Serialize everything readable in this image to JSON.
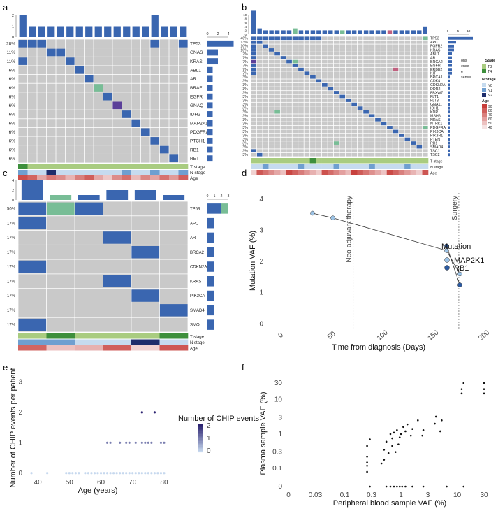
{
  "colors": {
    "mutation": "#3a66b0",
    "mut_green": "#78bd96",
    "mut_purple": "#5b3f99",
    "mut_pink": "#c0607f",
    "grid_bg": "#c9c9c9",
    "t3": "#a9cc80",
    "t4": "#3e8f3c",
    "n0": "#c6dbef",
    "n1": "#6f9fd0",
    "n2": "#1e2d6b",
    "age_hi": "#c73e3a",
    "age_lo": "#f5e2e2",
    "chip0": "#c6d8ee",
    "chip2": "#2b2270",
    "line_light": "#9cc3e6",
    "line_dark": "#2c5aa0"
  },
  "panels": {
    "a": "a",
    "b": "b",
    "c": "c",
    "d": "d",
    "e": "e",
    "f": "f"
  },
  "chart_data": [
    {
      "panel": "a",
      "type": "heatmap",
      "genes": [
        "TP53",
        "GNAS",
        "KRAS",
        "ABL1",
        "AR",
        "BRAF",
        "EGFR",
        "GNAQ",
        "IDH2",
        "MAP2K1",
        "PDGFRA",
        "PTCH1",
        "RB1",
        "RET"
      ],
      "percentages": [
        "28%",
        "11%",
        "11%",
        "6%",
        "6%",
        "6%",
        "6%",
        "6%",
        "6%",
        "6%",
        "6%",
        "6%",
        "6%",
        "6%"
      ],
      "n_samples": 18,
      "col_counts": [
        2,
        1,
        1,
        1,
        1,
        1,
        1,
        1,
        1,
        1,
        1,
        1,
        1,
        1,
        2,
        1,
        1,
        1
      ],
      "top_axis_ticks": [
        "0",
        "1",
        "2"
      ],
      "right_axis_ticks": [
        "0",
        "2",
        "4"
      ],
      "row_counts": [
        5,
        2,
        2,
        1,
        1,
        1,
        1,
        1,
        1,
        1,
        1,
        1,
        1,
        1
      ],
      "cells": [
        [
          0,
          0,
          "m"
        ],
        [
          0,
          1,
          "m"
        ],
        [
          0,
          2,
          "m"
        ],
        [
          0,
          14,
          "m"
        ],
        [
          0,
          17,
          "m"
        ],
        [
          1,
          3,
          "m"
        ],
        [
          1,
          4,
          "m"
        ],
        [
          2,
          0,
          "m"
        ],
        [
          2,
          5,
          "m"
        ],
        [
          3,
          6,
          "m"
        ],
        [
          4,
          7,
          "m"
        ],
        [
          5,
          8,
          "g"
        ],
        [
          6,
          9,
          "m"
        ],
        [
          7,
          10,
          "p"
        ],
        [
          8,
          11,
          "m"
        ],
        [
          9,
          12,
          "m"
        ],
        [
          10,
          13,
          "m"
        ],
        [
          11,
          14,
          "m"
        ],
        [
          12,
          15,
          "m"
        ],
        [
          13,
          16,
          "m"
        ]
      ],
      "t_stage": [
        "T4",
        "T3",
        "T3",
        "T3",
        "T3",
        "T3",
        "T3",
        "T3",
        "T3",
        "T3",
        "T3",
        "T3",
        "T3",
        "T3",
        "T3",
        "T3",
        "T3",
        "T3"
      ],
      "n_stage": [
        "N1",
        "N0",
        "N0",
        "N2",
        "N0",
        "N0",
        "N0",
        "N0",
        "N0",
        "N0",
        "N0",
        "N1",
        "N0",
        "N0",
        "N1",
        "N0",
        "N0",
        "N1"
      ],
      "age": [
        85,
        78,
        58,
        72,
        66,
        54,
        70,
        80,
        58,
        48,
        66,
        75,
        52,
        68,
        59,
        74,
        62,
        80
      ],
      "annotation_labels": [
        "T stage",
        "N stage",
        "Age"
      ]
    },
    {
      "panel": "b",
      "type": "heatmap",
      "genes": [
        "TP53",
        "APC",
        "FGFR2",
        "KRAS",
        "ABL1",
        "AR",
        "BRCA2",
        "EGFR",
        "ERBB2",
        "KIT",
        "BRCA1",
        "CDK4",
        "CDKN2A",
        "DDR2",
        "FBXW7",
        "FLT1",
        "FLT3",
        "GNA11",
        "IDH1",
        "KDR",
        "MSH6",
        "NRAS",
        "NTRK1",
        "PDGFRA",
        "PIK3CA",
        "PIK3R1",
        "PTEN",
        "RB1",
        "SMAD4",
        "TSC1",
        "TSC2"
      ],
      "percentages": [
        "40%",
        "13%",
        "10%",
        "10%",
        "7%",
        "7%",
        "7%",
        "7%",
        "7%",
        "7%",
        "3%",
        "3%",
        "3%",
        "3%",
        "3%",
        "3%",
        "3%",
        "3%",
        "3%",
        "3%",
        "3%",
        "3%",
        "3%",
        "3%",
        "3%",
        "3%",
        "3%",
        "3%",
        "3%",
        "3%",
        "3%"
      ],
      "n_samples": 30,
      "top_axis_ticks": [
        "0",
        "2",
        "4",
        "6",
        "8",
        "10"
      ],
      "right_axis_ticks": [
        "0",
        "5",
        "10"
      ],
      "legend_partial": [
        "ons",
        "ense",
        "e",
        "sense"
      ],
      "legend_titles": [
        "T Stage",
        "N Stage",
        "Age"
      ],
      "legend_t": [
        "T3",
        "T4"
      ],
      "legend_n": [
        "N0",
        "N1",
        "N2"
      ],
      "legend_age": [
        "90",
        "80",
        "70",
        "60",
        "50",
        "40"
      ],
      "annotation_labels": [
        "T stage",
        "N stage",
        "Age"
      ]
    },
    {
      "panel": "c",
      "type": "heatmap",
      "genes": [
        "TP53",
        "APC",
        "AR",
        "BRCA2",
        "CDKN2A",
        "KRAS",
        "PIK3CA",
        "SMAD4",
        "SMO"
      ],
      "percentages": [
        "50%",
        "17%",
        "17%",
        "17%",
        "17%",
        "17%",
        "17%",
        "17%",
        "17%"
      ],
      "n_samples": 6,
      "col_counts": [
        4,
        1,
        1,
        2,
        2,
        1
      ],
      "col_count_colors": [
        "m",
        "g",
        "m",
        "m",
        "m",
        "m"
      ],
      "top_axis_ticks": [
        "0",
        "2",
        "4"
      ],
      "right_axis_ticks": [
        "0",
        "1",
        "2",
        "3"
      ],
      "cells": [
        [
          0,
          0,
          "m"
        ],
        [
          0,
          1,
          "g"
        ],
        [
          0,
          2,
          "m"
        ],
        [
          1,
          0,
          "m"
        ],
        [
          2,
          3,
          "m"
        ],
        [
          3,
          4,
          "m"
        ],
        [
          4,
          0,
          "m"
        ],
        [
          5,
          3,
          "m"
        ],
        [
          6,
          4,
          "m"
        ],
        [
          7,
          5,
          "m"
        ],
        [
          8,
          0,
          "m"
        ]
      ],
      "t_stage": [
        "T3",
        "T4",
        "T3",
        "T3",
        "T3",
        "T4"
      ],
      "n_stage": [
        "N1",
        "N1",
        "N0",
        "N0",
        "N2",
        "N0"
      ],
      "age": [
        78,
        50,
        55,
        80,
        45,
        82
      ],
      "annotation_labels": [
        "T stage",
        "N stage",
        "Age"
      ]
    },
    {
      "panel": "d",
      "type": "line",
      "xlabel": "Time from diagnosis (Days)",
      "ylabel": "Mutation VAF (%)",
      "xlim": [
        -15,
        205
      ],
      "ylim": [
        -0.15,
        4.2
      ],
      "x_ticks": [
        0,
        50,
        100,
        150,
        200
      ],
      "y_ticks": [
        0,
        1,
        2,
        3,
        4
      ],
      "vlines": [
        {
          "x": 70,
          "label": "Neo-adjuvant therapy"
        },
        {
          "x": 174,
          "label": "Surgery"
        }
      ],
      "legend_title": "Mutation",
      "series": [
        {
          "name": "MAP2K1",
          "x": [
            30,
            50,
            162,
            175
          ],
          "y": [
            3.55,
            3.4,
            2.35,
            1.6
          ]
        },
        {
          "name": "RB1",
          "x": [
            162,
            175
          ],
          "y": [
            2.5,
            1.25
          ]
        }
      ]
    },
    {
      "panel": "e",
      "type": "scatter",
      "xlabel": "Age (years)",
      "ylabel": "Number of CHIP events per patient",
      "xlim": [
        36,
        82
      ],
      "ylim": [
        -0.12,
        3.1
      ],
      "x_ticks": [
        40,
        50,
        60,
        70,
        80
      ],
      "y_ticks": [
        0,
        1,
        2,
        3
      ],
      "legend_title": "Number of CHIP events",
      "legend_ticks": [
        "2",
        "1",
        "0"
      ],
      "points": [
        [
          38,
          0
        ],
        [
          43,
          0
        ],
        [
          49,
          0
        ],
        [
          50,
          0
        ],
        [
          51,
          0
        ],
        [
          52,
          0
        ],
        [
          53,
          0
        ],
        [
          55,
          0
        ],
        [
          56,
          0
        ],
        [
          57,
          0
        ],
        [
          58,
          0
        ],
        [
          59,
          0
        ],
        [
          60,
          0
        ],
        [
          61,
          0
        ],
        [
          62,
          0
        ],
        [
          63,
          0
        ],
        [
          64,
          0
        ],
        [
          65,
          0
        ],
        [
          66,
          0
        ],
        [
          67,
          0
        ],
        [
          68,
          0
        ],
        [
          69,
          0
        ],
        [
          70,
          0
        ],
        [
          71,
          0
        ],
        [
          72,
          0
        ],
        [
          73,
          0
        ],
        [
          74,
          0
        ],
        [
          75,
          0
        ],
        [
          76,
          0
        ],
        [
          77,
          0
        ],
        [
          78,
          0
        ],
        [
          79,
          0
        ],
        [
          80,
          0
        ],
        [
          62,
          1
        ],
        [
          63,
          1
        ],
        [
          66,
          1
        ],
        [
          68,
          1
        ],
        [
          69,
          1
        ],
        [
          71,
          1
        ],
        [
          73,
          1
        ],
        [
          74,
          1
        ],
        [
          75,
          1
        ],
        [
          76,
          1
        ],
        [
          79,
          1
        ],
        [
          80,
          1
        ],
        [
          73,
          2
        ],
        [
          77,
          2
        ]
      ]
    },
    {
      "panel": "f",
      "type": "scatter",
      "xlabel": "Peripheral blood sample VAF (%)",
      "ylabel": "Plasma sample VAF (%)",
      "scale": "log",
      "x_ticks": [
        "0",
        "0.03",
        "0.1",
        "0.3",
        "1",
        "3",
        "10",
        "30"
      ],
      "y_ticks": [
        "0",
        "0.1",
        "0.3",
        "1",
        "3",
        "10",
        "30"
      ],
      "points": [
        [
          0.25,
          0.08
        ],
        [
          0.25,
          0.12
        ],
        [
          0.25,
          0.15
        ],
        [
          0.25,
          0.22
        ],
        [
          0.25,
          0.45
        ],
        [
          0.28,
          0.7
        ],
        [
          0.45,
          0.14
        ],
        [
          0.5,
          0.18
        ],
        [
          0.5,
          0.35
        ],
        [
          0.55,
          0.6
        ],
        [
          0.6,
          0.28
        ],
        [
          0.65,
          1.0
        ],
        [
          0.7,
          0.45
        ],
        [
          0.7,
          0.75
        ],
        [
          0.75,
          1.1
        ],
        [
          0.8,
          0.3
        ],
        [
          0.85,
          1.3
        ],
        [
          0.9,
          0.5
        ],
        [
          0.95,
          0.8
        ],
        [
          1.0,
          1.0
        ],
        [
          1.1,
          1.6
        ],
        [
          1.2,
          1.2
        ],
        [
          1.3,
          1.9
        ],
        [
          1.5,
          0.9
        ],
        [
          1.6,
          1.4
        ],
        [
          2.0,
          2.5
        ],
        [
          2.4,
          0.9
        ],
        [
          2.5,
          1.3
        ],
        [
          4.0,
          2.0
        ],
        [
          4.2,
          3.2
        ],
        [
          5.0,
          1.2
        ],
        [
          5.3,
          2.5
        ],
        [
          12,
          15
        ],
        [
          12,
          20
        ],
        [
          13,
          30
        ],
        [
          30,
          15
        ],
        [
          30,
          20
        ],
        [
          30,
          30
        ],
        [
          0.28,
          0
        ],
        [
          0.55,
          0
        ],
        [
          0.65,
          0
        ],
        [
          0.75,
          0
        ],
        [
          0.85,
          0
        ],
        [
          0.95,
          0
        ],
        [
          1.05,
          0
        ],
        [
          1.2,
          0
        ],
        [
          1.6,
          0
        ],
        [
          2.5,
          0
        ],
        [
          6.5,
          0
        ],
        [
          13,
          0
        ]
      ]
    }
  ]
}
